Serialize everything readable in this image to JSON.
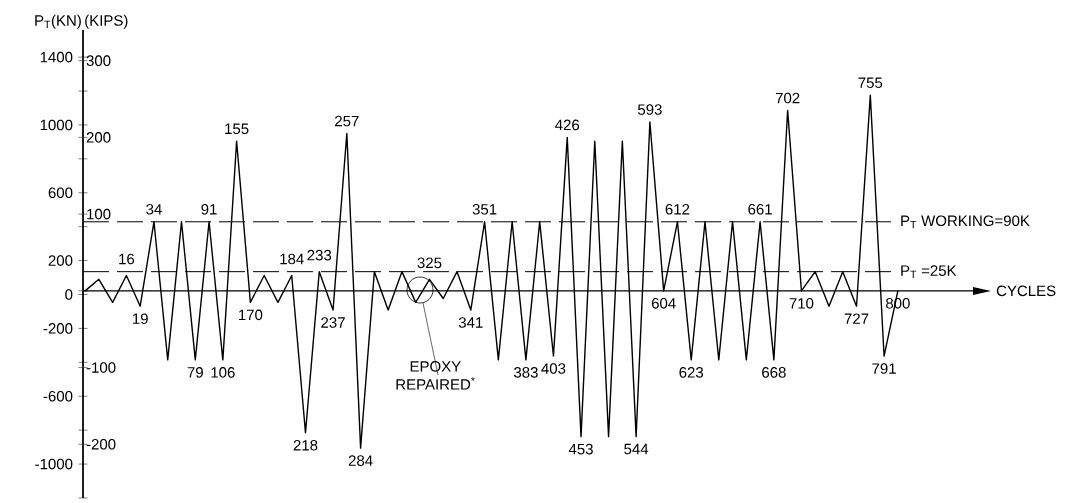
{
  "chart_data": {
    "type": "line",
    "ylabel": "P$_{T}$(KN)",
    "y2label": "(KIPS)",
    "categories": [
      null,
      null,
      null,
      "16",
      "19",
      "34",
      null,
      null,
      "79",
      "91",
      "106",
      "155",
      "170",
      null,
      null,
      "184",
      "218",
      "233",
      "237",
      "257",
      "284",
      null,
      null,
      null,
      null,
      "325",
      null,
      null,
      "341",
      "351",
      null,
      null,
      "383",
      null,
      "403",
      "426",
      "453",
      null,
      null,
      null,
      "544",
      "593",
      "604",
      "612",
      "623",
      null,
      null,
      null,
      null,
      "661",
      "668",
      "702",
      "710",
      null,
      null,
      null,
      "727",
      "755",
      "791",
      "800"
    ],
    "series": [
      {
        "color": "#000000",
        "axis": "y2",
        "values": [
          0,
          15,
          -15,
          20,
          -20,
          90,
          -90,
          90,
          -90,
          90,
          -90,
          195,
          -15,
          20,
          -15,
          20,
          -185,
          25,
          -25,
          205,
          -205,
          25,
          -25,
          25,
          -15,
          15,
          -10,
          25,
          -25,
          90,
          -90,
          90,
          -90,
          90,
          -85,
          200,
          -190,
          195,
          -190,
          195,
          -190,
          220,
          0,
          90,
          -90,
          90,
          -90,
          90,
          -90,
          90,
          -90,
          235,
          0,
          25,
          -20,
          25,
          -20,
          255,
          -85,
          0
        ]
      }
    ],
    "ylim": [
      -1200,
      1560
    ],
    "yticks": [
      {
        "value": -1200,
        "label": null
      },
      -1000,
      {
        "value": -800,
        "label": null
      },
      -600,
      {
        "value": -400,
        "label": null
      },
      -200,
      0,
      200,
      {
        "value": 400,
        "label": null
      },
      600,
      {
        "value": 800,
        "label": null
      },
      1000,
      {
        "value": 1200,
        "label": null
      },
      1400
    ],
    "y2lim": [
      -270,
      340
    ],
    "y2ticks": [
      -200,
      -100,
      {
        "value": 0,
        "label": null
      },
      100,
      200,
      300
    ],
    "ref_lines": [
      {
        "axis": "y2",
        "value": 90,
        "label": "P$_{T}$ WORKING=90K",
        "line_style": "dashed"
      },
      {
        "axis": "y2",
        "value": 25,
        "label": "P$_{T}$ =25K",
        "line_style": "dashed"
      }
    ],
    "annotations": [
      "EPOXY REPAIRED$^{*}$",
      "CYCLES"
    ]
  }
}
